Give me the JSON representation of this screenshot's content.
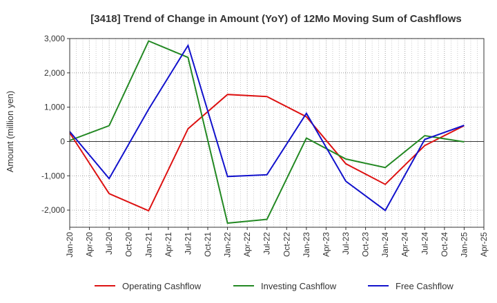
{
  "chart_data": {
    "type": "line",
    "title": "[3418]  Trend of Change in Amount (YoY) of 12Mo Moving Sum of Cashflows",
    "xlabel": "",
    "ylabel": "Amount (million yen)",
    "ylim": [
      -2500,
      3000
    ],
    "yticks": [
      3000,
      2000,
      1000,
      0,
      -1000,
      -2000
    ],
    "ytick_labels": [
      "3,000",
      "2,000",
      "1,000",
      "0",
      "-1,000",
      "-2,000"
    ],
    "xtick_labels": [
      "Jan-20",
      "Apr-20",
      "Jul-20",
      "Oct-20",
      "Jan-21",
      "Apr-21",
      "Jul-21",
      "Oct-21",
      "Jan-22",
      "Apr-22",
      "Jul-22",
      "Oct-22",
      "Jan-23",
      "Apr-23",
      "Jul-23",
      "Oct-23",
      "Jan-24",
      "Apr-24",
      "Jul-24",
      "Oct-24",
      "Jan-25",
      "Apr-25"
    ],
    "grid": true,
    "legend_position": "bottom",
    "series": [
      {
        "name": "Operating Cashflow",
        "color": "#dd1111",
        "points": [
          [
            0,
            250
          ],
          [
            2,
            -1520
          ],
          [
            4,
            -2020
          ],
          [
            6,
            370
          ],
          [
            8,
            1370
          ],
          [
            10,
            1310
          ],
          [
            12,
            720
          ],
          [
            14,
            -650
          ],
          [
            16,
            -1250
          ],
          [
            18,
            -120
          ],
          [
            20,
            460
          ]
        ]
      },
      {
        "name": "Investing Cashflow",
        "color": "#228822",
        "points": [
          [
            0,
            30
          ],
          [
            2,
            460
          ],
          [
            4,
            2930
          ],
          [
            6,
            2450
          ],
          [
            8,
            -2380
          ],
          [
            10,
            -2270
          ],
          [
            12,
            100
          ],
          [
            14,
            -510
          ],
          [
            16,
            -760
          ],
          [
            18,
            170
          ],
          [
            20,
            -10
          ]
        ]
      },
      {
        "name": "Free Cashflow",
        "color": "#1111cc",
        "points": [
          [
            0,
            290
          ],
          [
            2,
            -1080
          ],
          [
            4,
            940
          ],
          [
            6,
            2800
          ],
          [
            8,
            -1020
          ],
          [
            10,
            -970
          ],
          [
            12,
            820
          ],
          [
            14,
            -1160
          ],
          [
            16,
            -2010
          ],
          [
            18,
            60
          ],
          [
            20,
            470
          ]
        ]
      }
    ]
  }
}
